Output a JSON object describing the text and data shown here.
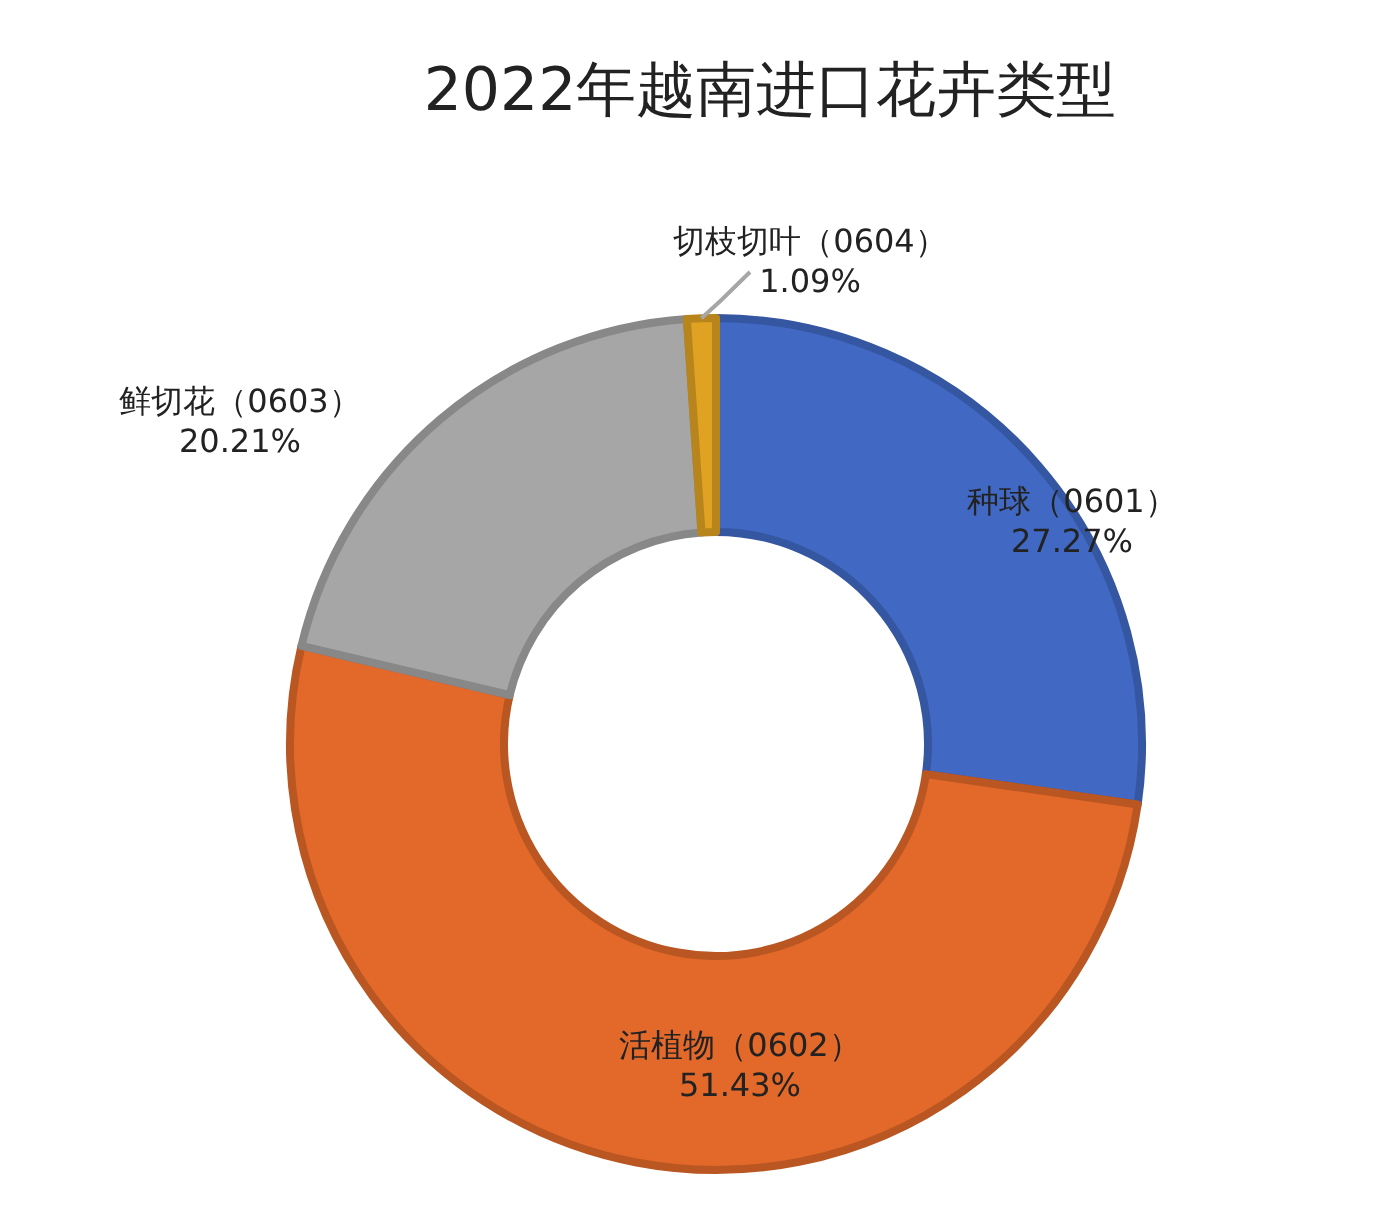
{
  "chart_data": {
    "type": "donut",
    "title": "2022年越南进口花卉类型",
    "categories": [
      "种球（0601）",
      "活植物（0602）",
      "鲜切花（0603）",
      "切枝切叶（0604）"
    ],
    "values": [
      27.27,
      51.43,
      20.21,
      1.09
    ],
    "colors": [
      "#4169c4",
      "#e2692a",
      "#a6a6a6",
      "#e0a222"
    ],
    "value_labels": [
      "27.27%",
      "51.43%",
      "20.21%",
      "1.09%"
    ]
  }
}
